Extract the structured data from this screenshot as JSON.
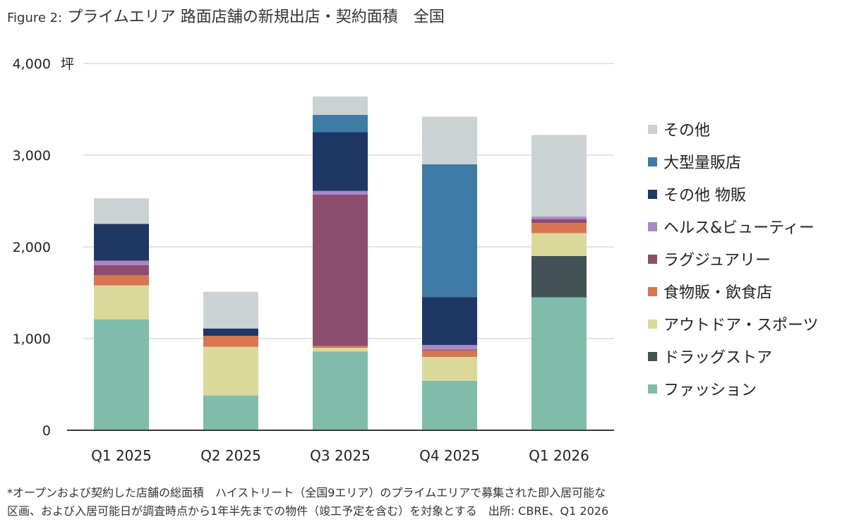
{
  "title": {
    "prefix": "Figure 2:",
    "main": "プライムエリア 路面店舗の新規出店・契約面積　全国"
  },
  "chart_data": {
    "type": "bar",
    "stacked": true,
    "y_unit": "坪",
    "ylim": [
      0,
      4000
    ],
    "y_ticks": [
      0,
      1000,
      2000,
      3000,
      4000
    ],
    "y_tick_labels": [
      "0",
      "1,000",
      "2,000",
      "3,000",
      "4,000"
    ],
    "grid": true,
    "legend_position": "right",
    "categories": [
      "Q1 2025",
      "Q2 2025",
      "Q3 2025",
      "Q4 2025",
      "Q1 2026"
    ],
    "series": [
      {
        "name": "ファッション",
        "color": "#80bcaa",
        "values": [
          1210,
          380,
          860,
          540,
          1450
        ]
      },
      {
        "name": "ドラッグストア",
        "color": "#435254",
        "values": [
          0,
          0,
          0,
          0,
          450
        ]
      },
      {
        "name": "アウトドア・スポーツ",
        "color": "#dbd99a",
        "values": [
          370,
          530,
          40,
          260,
          250
        ]
      },
      {
        "name": "食物販・飲食店",
        "color": "#d7764f",
        "values": [
          110,
          120,
          20,
          70,
          110
        ]
      },
      {
        "name": "ラグジュアリー",
        "color": "#8b4e6e",
        "values": [
          110,
          0,
          1650,
          10,
          40
        ]
      },
      {
        "name": "ヘルス&ビューティー",
        "color": "#a988c5",
        "values": [
          50,
          0,
          40,
          50,
          30
        ]
      },
      {
        "name": "その他 物販",
        "color": "#1f3764",
        "values": [
          400,
          80,
          640,
          520,
          0
        ]
      },
      {
        "name": "大型量販店",
        "color": "#3e7ca6",
        "values": [
          0,
          0,
          190,
          1450,
          0
        ]
      },
      {
        "name": "その他",
        "color": "#cbd2d4",
        "values": [
          280,
          400,
          200,
          520,
          890
        ]
      }
    ]
  },
  "footnote": {
    "line1": "*オープンおよび契約した店舗の総面積　ハイストリート（全国9エリア）のプライムエリアで募集された即入居可能な",
    "line2": "区画、および入居可能日が調査時点から1年半先までの物件（竣工予定を含む）を対象とする　出所: CBRE、Q1 2026"
  }
}
